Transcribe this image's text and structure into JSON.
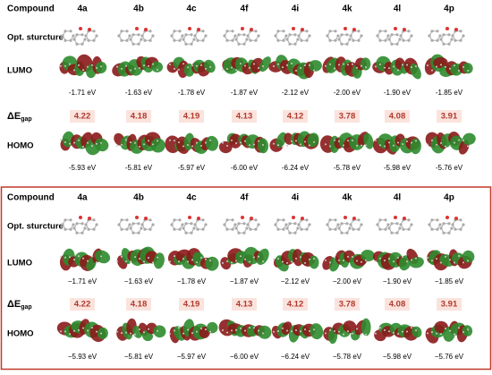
{
  "panels": [
    {
      "header": [
        "Compound",
        "4a",
        "4b",
        "4c",
        "4f",
        "4i",
        "4k",
        "4l",
        "4p"
      ],
      "structure_label": "Opt. sturcture",
      "lumo": {
        "label": "LUMO",
        "energies": [
          "-1.71 eV",
          "-1.63 eV",
          "-1.78 eV",
          "-1.87 eV",
          "-2.12 eV",
          "-2.00 eV",
          "-1.90 eV",
          "-1.85 eV"
        ]
      },
      "gap": {
        "label": "ΔE",
        "subscript": "gap",
        "values": [
          "4.22",
          "4.18",
          "4.19",
          "4.13",
          "4.12",
          "3.78",
          "4.08",
          "3.91"
        ]
      },
      "homo": {
        "label": "HOMO",
        "energies": [
          "-5.93 eV",
          "-5.81 eV",
          "-5.97 eV",
          "-6.00 eV",
          "-6.24 eV",
          "-5.78 eV",
          "-5.98 eV",
          "-5.76 eV"
        ]
      }
    },
    {
      "header": [
        "Compound",
        "4a",
        "4b",
        "4c",
        "4f",
        "4i",
        "4k",
        "4l",
        "4p"
      ],
      "structure_label": "Opt. sturcture",
      "lumo": {
        "label": "LUMO",
        "energies": [
          "−1.71 eV",
          "−1.63 eV",
          "−1.78 eV",
          "−1.87 eV",
          "−2.12 eV",
          "−2.00 eV",
          "−1.90 eV",
          "−1.85 eV"
        ]
      },
      "gap": {
        "label": "ΔE",
        "subscript": "gap",
        "values": [
          "4.22",
          "4.18",
          "4.19",
          "4.13",
          "4.12",
          "3.78",
          "4.08",
          "3.91"
        ]
      },
      "homo": {
        "label": "HOMO",
        "energies": [
          "−5.93 eV",
          "−5.81 eV",
          "−5.97 eV",
          "−6.00 eV",
          "−6.24 eV",
          "−5.78 eV",
          "−5.98 eV",
          "−5.76 eV"
        ]
      }
    }
  ]
}
